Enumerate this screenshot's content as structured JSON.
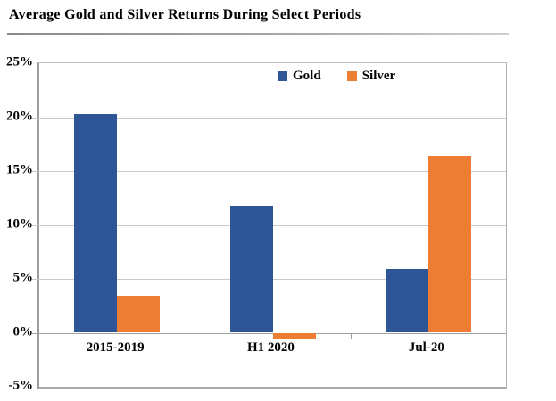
{
  "title": "Average Gold and Silver Returns During Select Periods",
  "colors": {
    "gold": "#2E5697",
    "silver": "#EC7D32",
    "gridline": "#C9C9C9",
    "axis": "#9C9C9C",
    "text": "#000000"
  },
  "chart_data": {
    "type": "bar",
    "title": "Average Gold and Silver Returns During Select Periods",
    "categories": [
      "2015-2019",
      "H1 2020",
      "Jul-20"
    ],
    "series": [
      {
        "name": "Gold",
        "color": "#2E5697",
        "values": [
          20.3,
          11.8,
          5.9
        ]
      },
      {
        "name": "Silver",
        "color": "#EC7D32",
        "values": [
          3.4,
          -0.5,
          16.4
        ]
      }
    ],
    "y_tick_values": [
      25,
      20,
      15,
      10,
      5,
      0,
      -5
    ],
    "y_tick_labels": [
      "25%",
      "20%",
      "15%",
      "10%",
      "5%",
      "0%",
      "-5%"
    ],
    "ylim": [
      -5,
      25
    ],
    "xlabel": "",
    "ylabel": "",
    "grid": true,
    "legend_position": "top-center"
  }
}
